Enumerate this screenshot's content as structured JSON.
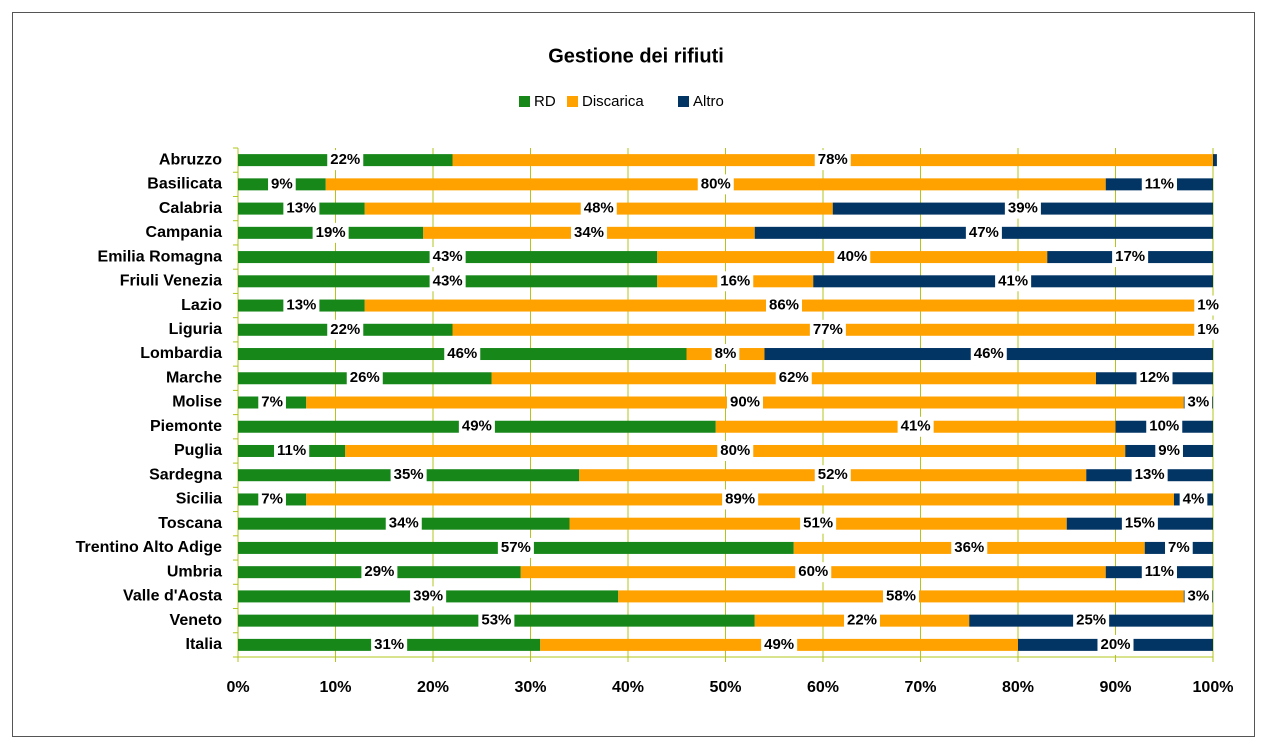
{
  "chart_data": {
    "type": "stacked_bar_horizontal",
    "title": "Gestione dei rifiuti",
    "categories": [
      "Abruzzo",
      "Basilicata",
      "Calabria",
      "Campania",
      "Emilia Romagna",
      "Friuli Venezia",
      "Lazio",
      "Liguria",
      "Lombardia",
      "Marche",
      "Molise",
      "Piemonte",
      "Puglia",
      "Sardegna",
      "Sicilia",
      "Toscana",
      "Trentino Alto Adige",
      "Umbria",
      "Valle d'Aosta",
      "Veneto",
      "Italia"
    ],
    "series": [
      {
        "name": "RD",
        "color": "#17871a",
        "values": [
          22,
          9,
          13,
          19,
          43,
          43,
          13,
          22,
          46,
          26,
          7,
          49,
          11,
          35,
          7,
          34,
          57,
          29,
          39,
          53,
          31
        ],
        "value_labels": [
          "22%",
          "9%",
          "13%",
          "19%",
          "43%",
          "43%",
          "13%",
          "22%",
          "46%",
          "26%",
          "7%",
          "49%",
          "11%",
          "35%",
          "7%",
          "34%",
          "57%",
          "29%",
          "39%",
          "53%",
          "31%"
        ]
      },
      {
        "name": "Discarica",
        "color": "#ffa200",
        "values": [
          78,
          80,
          48,
          34,
          40,
          16,
          86,
          77,
          8,
          62,
          90,
          41,
          80,
          52,
          89,
          51,
          36,
          60,
          58,
          22,
          49
        ],
        "value_labels": [
          "78%",
          "80%",
          "48%",
          "34%",
          "40%",
          "16%",
          "86%",
          "77%",
          "8%",
          "62%",
          "90%",
          "41%",
          "80%",
          "52%",
          "89%",
          "51%",
          "36%",
          "60%",
          "58%",
          "22%",
          "49%"
        ]
      },
      {
        "name": "Altro",
        "color": "#023464",
        "values": [
          0.4,
          11,
          39,
          47,
          17,
          41,
          1,
          1,
          46,
          12,
          3,
          10,
          9,
          13,
          4,
          15,
          7,
          11,
          3,
          25,
          20
        ],
        "value_labels": [
          null,
          "11%",
          "39%",
          "47%",
          "17%",
          "41%",
          "1%",
          "1%",
          "46%",
          "12%",
          "3%",
          "10%",
          "9%",
          "13%",
          "4%",
          "15%",
          "7%",
          "11%",
          "3%",
          "25%",
          "20%"
        ]
      }
    ],
    "xlim": [
      0,
      100
    ],
    "xticks": [
      {
        "value": 0,
        "label": "0%"
      },
      {
        "value": 10,
        "label": "10%"
      },
      {
        "value": 20,
        "label": "20%"
      },
      {
        "value": 30,
        "label": "30%"
      },
      {
        "value": 40,
        "label": "40%"
      },
      {
        "value": 50,
        "label": "50%"
      },
      {
        "value": 60,
        "label": "60%"
      },
      {
        "value": 70,
        "label": "70%"
      },
      {
        "value": 80,
        "label": "80%"
      },
      {
        "value": 90,
        "label": "90%"
      },
      {
        "value": 100,
        "label": "100%"
      }
    ],
    "grid": true,
    "legend": "top"
  }
}
